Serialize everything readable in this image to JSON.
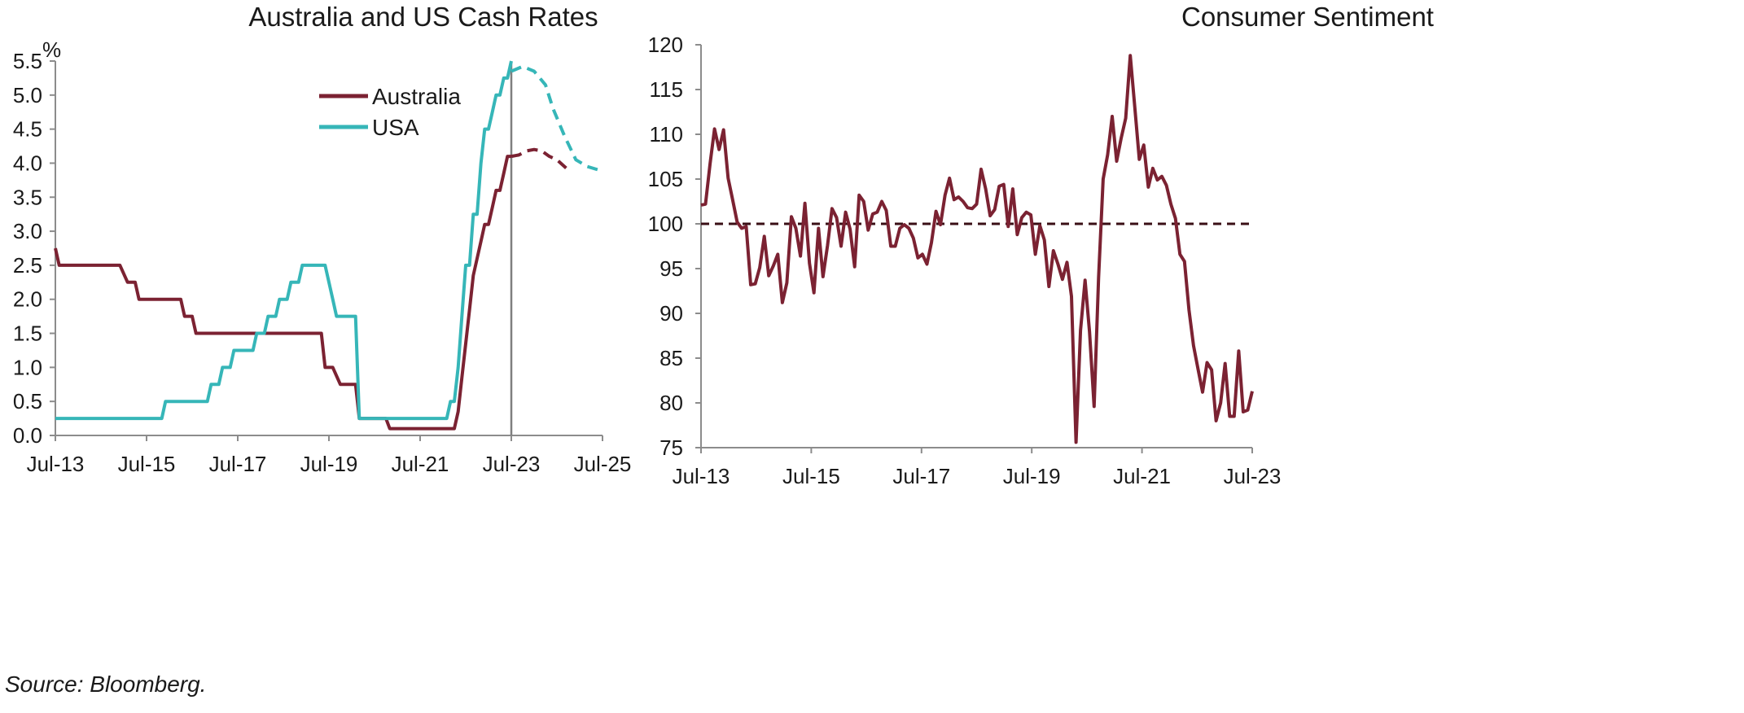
{
  "source_note": "Source: Bloomberg.",
  "chart_data": [
    {
      "type": "line",
      "title": "Australia and US Cash Rates",
      "ylabel": "%",
      "ylim": [
        0,
        5.5
      ],
      "y_ticks": [
        "0.0",
        "0.5",
        "1.0",
        "1.5",
        "2.0",
        "2.5",
        "3.0",
        "3.5",
        "4.0",
        "4.5",
        "5.0",
        "5.5"
      ],
      "x_ticks": [
        "Jul-13",
        "Jul-15",
        "Jul-17",
        "Jul-19",
        "Jul-21",
        "Jul-23",
        "Jul-25"
      ],
      "xlim": [
        "2013-07",
        "2025-07"
      ],
      "vertical_marker": "2023-07",
      "legend_position": "top-center",
      "series": [
        {
          "name": "Australia",
          "color": "#7b2232",
          "style": "solid",
          "points": [
            [
              "2013-07",
              2.75
            ],
            [
              "2013-08",
              2.5
            ],
            [
              "2014-12",
              2.5
            ],
            [
              "2015-02",
              2.25
            ],
            [
              "2015-04",
              2.25
            ],
            [
              "2015-05",
              2.0
            ],
            [
              "2016-04",
              2.0
            ],
            [
              "2016-05",
              1.75
            ],
            [
              "2016-07",
              1.75
            ],
            [
              "2016-08",
              1.5
            ],
            [
              "2019-05",
              1.5
            ],
            [
              "2019-06",
              1.0
            ],
            [
              "2019-08",
              1.0
            ],
            [
              "2019-10",
              0.75
            ],
            [
              "2020-02",
              0.75
            ],
            [
              "2020-03",
              0.25
            ],
            [
              "2020-10",
              0.25
            ],
            [
              "2020-11",
              0.1
            ],
            [
              "2022-04",
              0.1
            ],
            [
              "2022-05",
              0.35
            ],
            [
              "2022-06",
              0.85
            ],
            [
              "2022-07",
              1.35
            ],
            [
              "2022-08",
              1.85
            ],
            [
              "2022-09",
              2.35
            ],
            [
              "2022-10",
              2.6
            ],
            [
              "2022-11",
              2.85
            ],
            [
              "2022-12",
              3.1
            ],
            [
              "2023-01",
              3.1
            ],
            [
              "2023-02",
              3.35
            ],
            [
              "2023-03",
              3.6
            ],
            [
              "2023-04",
              3.6
            ],
            [
              "2023-05",
              3.85
            ],
            [
              "2023-06",
              4.1
            ],
            [
              "2023-07",
              4.1
            ]
          ]
        },
        {
          "name": "USA",
          "color": "#36b6b8",
          "style": "solid",
          "points": [
            [
              "2013-07",
              0.25
            ],
            [
              "2015-11",
              0.25
            ],
            [
              "2015-12",
              0.5
            ],
            [
              "2016-11",
              0.5
            ],
            [
              "2016-12",
              0.75
            ],
            [
              "2017-02",
              0.75
            ],
            [
              "2017-03",
              1.0
            ],
            [
              "2017-05",
              1.0
            ],
            [
              "2017-06",
              1.25
            ],
            [
              "2017-11",
              1.25
            ],
            [
              "2017-12",
              1.5
            ],
            [
              "2018-02",
              1.5
            ],
            [
              "2018-03",
              1.75
            ],
            [
              "2018-05",
              1.75
            ],
            [
              "2018-06",
              2.0
            ],
            [
              "2018-08",
              2.0
            ],
            [
              "2018-09",
              2.25
            ],
            [
              "2018-11",
              2.25
            ],
            [
              "2018-12",
              2.5
            ],
            [
              "2019-06",
              2.5
            ],
            [
              "2019-07",
              2.25
            ],
            [
              "2019-08",
              2.0
            ],
            [
              "2019-09",
              1.75
            ],
            [
              "2020-02",
              1.75
            ],
            [
              "2020-03",
              0.25
            ],
            [
              "2022-02",
              0.25
            ],
            [
              "2022-03",
              0.5
            ],
            [
              "2022-04",
              0.5
            ],
            [
              "2022-05",
              1.0
            ],
            [
              "2022-06",
              1.75
            ],
            [
              "2022-07",
              2.5
            ],
            [
              "2022-08",
              2.5
            ],
            [
              "2022-09",
              3.25
            ],
            [
              "2022-10",
              3.25
            ],
            [
              "2022-11",
              4.0
            ],
            [
              "2022-12",
              4.5
            ],
            [
              "2023-01",
              4.5
            ],
            [
              "2023-02",
              4.75
            ],
            [
              "2023-03",
              5.0
            ],
            [
              "2023-04",
              5.0
            ],
            [
              "2023-05",
              5.25
            ],
            [
              "2023-06",
              5.25
            ],
            [
              "2023-07",
              5.5
            ]
          ]
        },
        {
          "color": "#7b2232",
          "style": "dashed",
          "points": [
            [
              "2023-07",
              4.1
            ],
            [
              "2023-09",
              4.12
            ],
            [
              "2023-11",
              4.18
            ],
            [
              "2024-01",
              4.2
            ],
            [
              "2024-03",
              4.18
            ],
            [
              "2024-05",
              4.1
            ],
            [
              "2024-07",
              4.05
            ],
            [
              "2024-09",
              3.95
            ],
            [
              "2024-10",
              3.9
            ]
          ]
        },
        {
          "color": "#36b6b8",
          "style": "dashed",
          "points": [
            [
              "2023-07",
              5.35
            ],
            [
              "2023-10",
              5.42
            ],
            [
              "2024-01",
              5.35
            ],
            [
              "2024-04",
              5.15
            ],
            [
              "2024-06",
              4.8
            ],
            [
              "2024-09",
              4.4
            ],
            [
              "2024-12",
              4.05
            ],
            [
              "2025-03",
              3.95
            ],
            [
              "2025-06",
              3.9
            ],
            [
              "2025-07",
              3.9
            ]
          ]
        }
      ]
    },
    {
      "type": "line",
      "title": "Consumer Sentiment",
      "ylim": [
        75,
        120
      ],
      "y_ticks": [
        "75",
        "80",
        "85",
        "90",
        "95",
        "100",
        "105",
        "110",
        "115",
        "120"
      ],
      "x_ticks": [
        "Jul-13",
        "Jul-15",
        "Jul-17",
        "Jul-19",
        "Jul-21",
        "Jul-23"
      ],
      "xlim": [
        "2013-07",
        "2023-07"
      ],
      "reference_line": 100,
      "color": "#7b2232",
      "reference_color": "#3a0f16",
      "values": [
        102.1,
        102.2,
        106.7,
        110.6,
        108.3,
        110.5,
        105.1,
        102.7,
        100.2,
        99.5,
        99.7,
        93.2,
        93.3,
        95.1,
        98.6,
        94.2,
        95.3,
        96.6,
        91.2,
        93.4,
        100.8,
        99.5,
        96.4,
        102.3,
        95.6,
        92.3,
        99.5,
        94.1,
        97.6,
        101.7,
        100.7,
        97.5,
        101.3,
        99.4,
        95.2,
        103.2,
        102.5,
        99.3,
        101.1,
        101.3,
        102.5,
        101.5,
        97.5,
        97.5,
        99.5,
        99.9,
        99.5,
        98.4,
        96.2,
        96.6,
        95.5,
        97.9,
        101.4,
        99.9,
        103.2,
        105.1,
        102.7,
        103.0,
        102.5,
        101.8,
        101.7,
        102.2,
        106.1,
        103.9,
        100.9,
        101.6,
        104.2,
        104.4,
        99.7,
        103.9,
        98.8,
        100.7,
        101.3,
        101.0,
        96.6,
        99.8,
        98.2,
        93.0,
        97.0,
        95.5,
        93.8,
        95.7,
        91.9,
        75.6,
        88.1,
        93.7,
        87.9,
        79.6,
        94.0,
        105.0,
        107.7,
        112.0,
        107.0,
        109.6,
        111.8,
        118.8,
        113.1,
        107.2,
        108.8,
        104.1,
        106.2,
        104.9,
        105.3,
        104.3,
        102.2,
        100.6,
        96.6,
        95.8,
        90.4,
        86.4,
        83.8,
        81.2,
        84.5,
        83.7,
        78.0,
        80.0,
        84.4,
        78.5,
        78.5,
        85.8,
        79.0,
        79.2,
        81.3
      ]
    }
  ]
}
